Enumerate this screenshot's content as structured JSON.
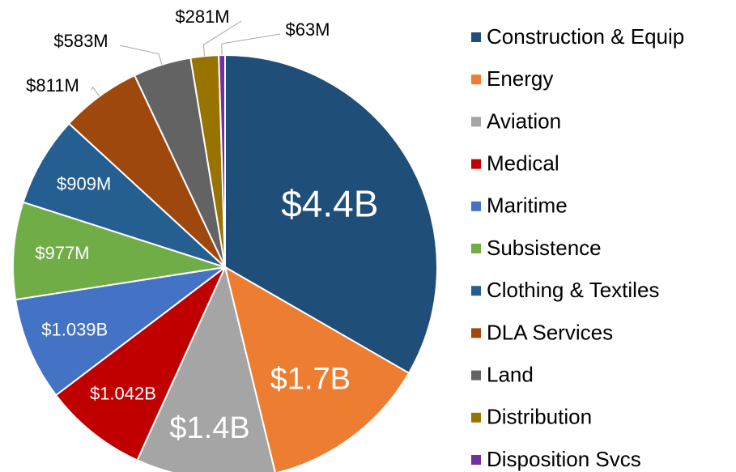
{
  "chart_data": {
    "type": "pie",
    "categories": [
      "Construction & Equip",
      "Energy",
      "Aviation",
      "Medical",
      "Maritime",
      "Subsistence",
      "Clothing & Textiles",
      "DLA Services",
      "Land",
      "Distribution",
      "Disposition Svcs"
    ],
    "values": [
      4400,
      1700,
      1400,
      1042,
      1039,
      977,
      909,
      811,
      583,
      281,
      63
    ],
    "value_labels": [
      "$4.4B",
      "$1.7B",
      "$1.4B",
      "$1.042B",
      "$1.039B",
      "$977M",
      "$909M",
      "$811M",
      "$583M",
      "$281M",
      "$63M"
    ],
    "colors": [
      "#1f4e79",
      "#ed7d31",
      "#a5a5a5",
      "#c00000",
      "#4472c4",
      "#70ad47",
      "#255e91",
      "#9e480e",
      "#636363",
      "#997300",
      "#7030a0"
    ],
    "legend": "right"
  }
}
